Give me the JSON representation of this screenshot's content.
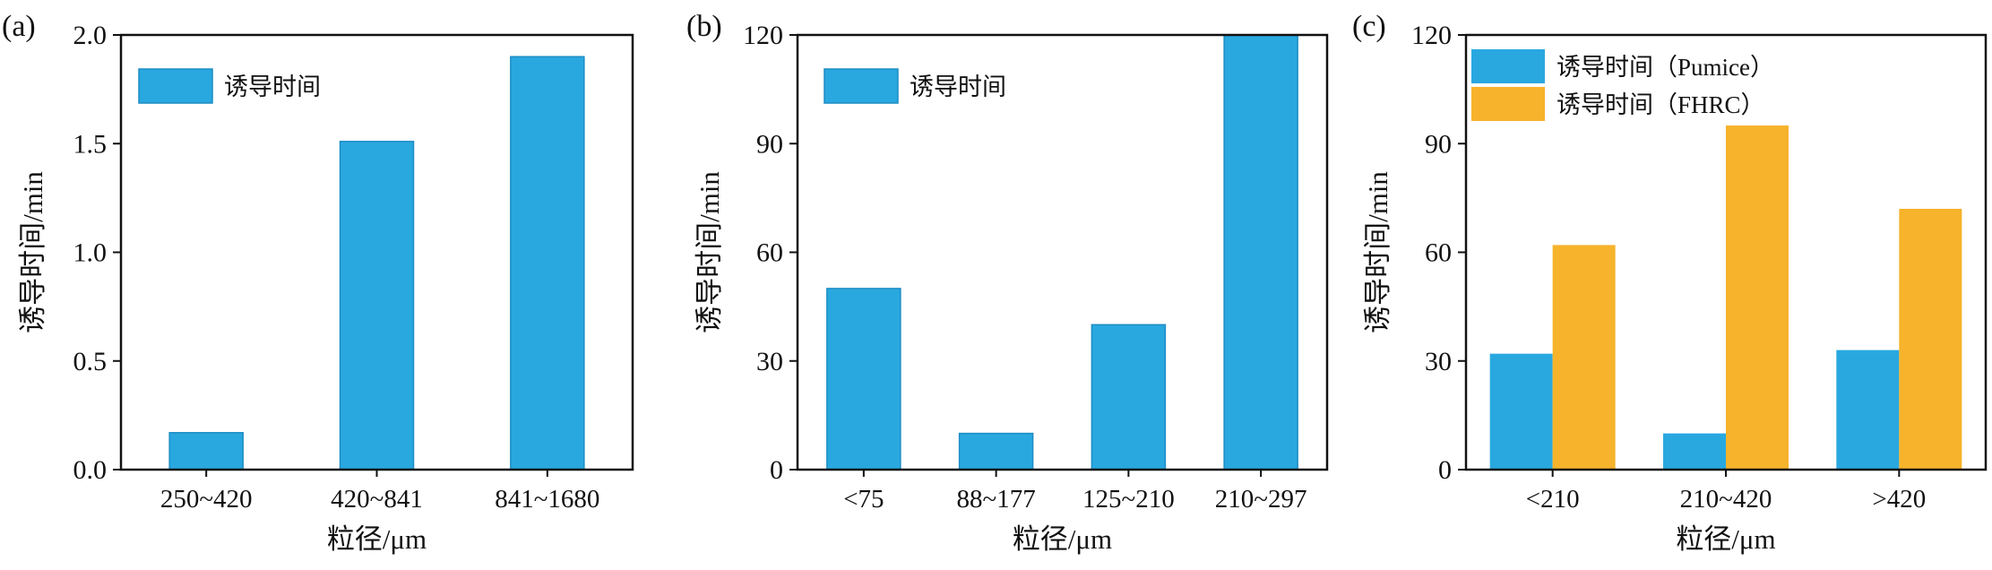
{
  "chart_data": [
    {
      "panel_label": "(a)",
      "type": "bar",
      "categories": [
        "250~420",
        "420~841",
        "841~1680"
      ],
      "series": [
        {
          "name": "诱导时间",
          "values": [
            0.17,
            1.51,
            1.9
          ],
          "color": "#29A8E0"
        }
      ],
      "xlabel": "粒径/μm",
      "ylabel": "诱导时间/min",
      "ylim": [
        0,
        2.0
      ],
      "yticks": [
        "0.0",
        "0.5",
        "1.0",
        "1.5",
        "2.0"
      ],
      "legend_position": "top-left",
      "grid": false
    },
    {
      "panel_label": "(b)",
      "type": "bar",
      "categories": [
        "<75",
        "88~177",
        "125~210",
        "210~297"
      ],
      "series": [
        {
          "name": "诱导时间",
          "values": [
            50,
            10,
            40,
            120
          ],
          "color": "#29A8E0"
        }
      ],
      "xlabel": "粒径/μm",
      "ylabel": "诱导时间/min",
      "ylim": [
        0,
        120
      ],
      "yticks": [
        "0",
        "30",
        "60",
        "90",
        "120"
      ],
      "legend_position": "top-left",
      "grid": false
    },
    {
      "panel_label": "(c)",
      "type": "bar",
      "categories": [
        "<210",
        "210~420",
        ">420"
      ],
      "series": [
        {
          "name": "诱导时间（Pumice）",
          "values": [
            32,
            10,
            33
          ],
          "color": "#29A8E0"
        },
        {
          "name": "诱导时间（FHRC）",
          "values": [
            62,
            95,
            72
          ],
          "color": "#F6B32B"
        }
      ],
      "xlabel": "粒径/μm",
      "ylabel": "诱导时间/min",
      "ylim": [
        0,
        120
      ],
      "yticks": [
        "0",
        "30",
        "60",
        "90",
        "120"
      ],
      "legend_position": "top-left",
      "grid": false
    }
  ]
}
